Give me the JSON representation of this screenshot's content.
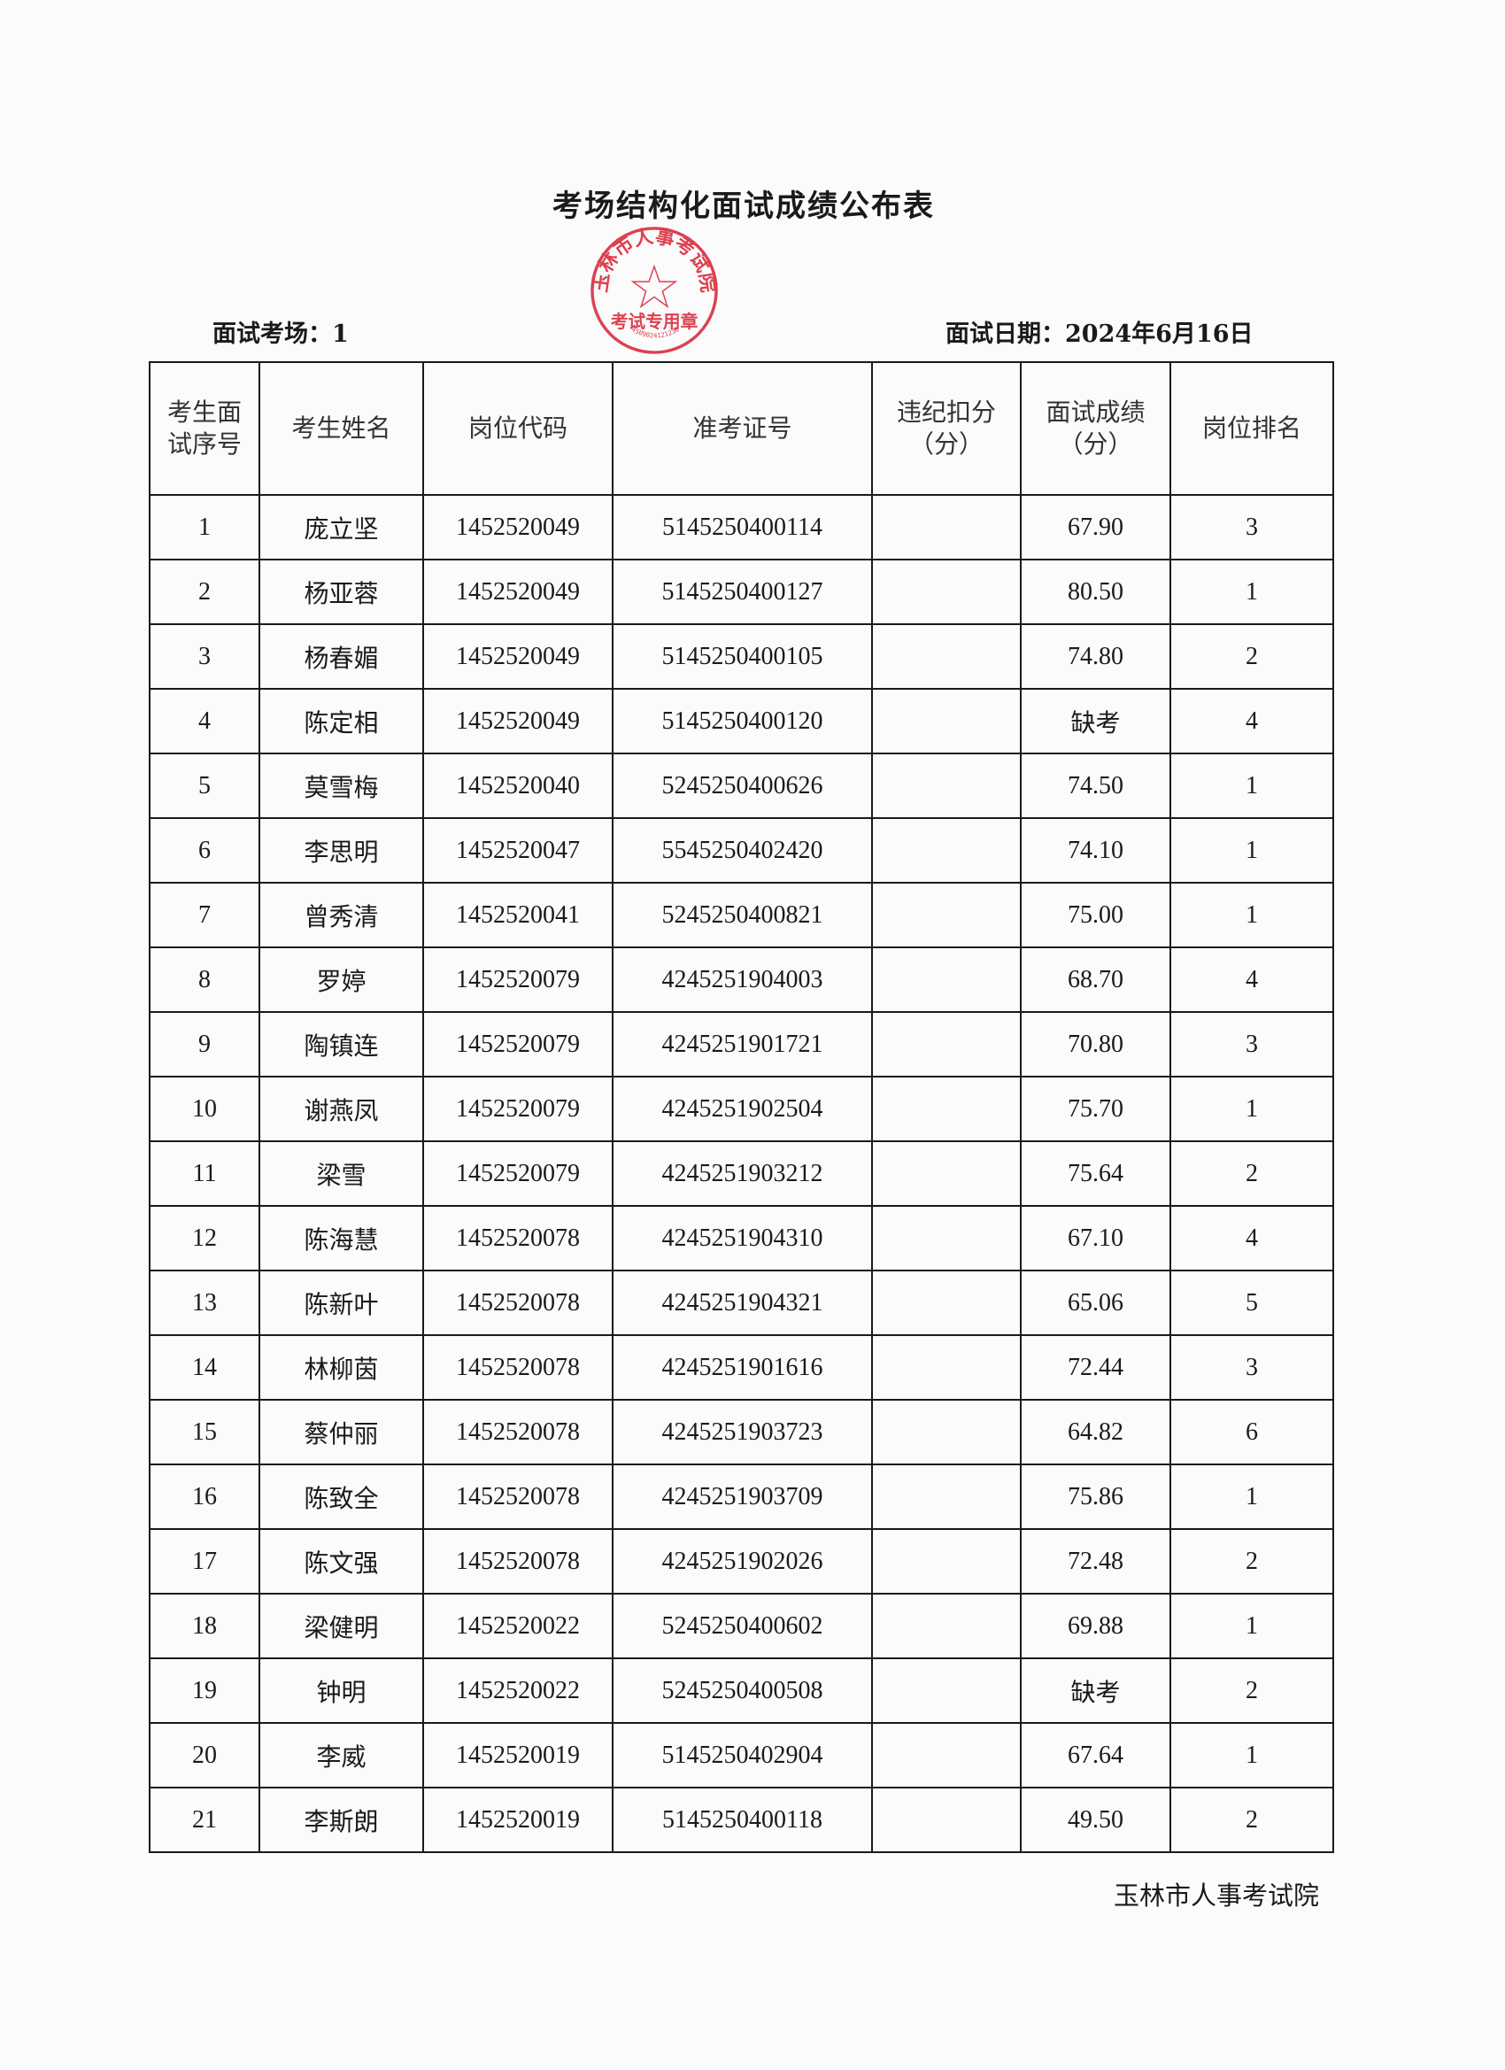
{
  "title": "考场结构化面试成绩公布表",
  "exam_room_label": "面试考场：1",
  "exam_date_label": "面试日期：2024年6月16日",
  "headers": [
    "考生面\n试序号",
    "考生姓名",
    "岗位代码",
    "准考证号",
    "违纪扣分\n（分）",
    "面试成绩\n（分）",
    "岗位排名"
  ],
  "rows": [
    [
      "1",
      "庞立坚",
      "1452520049",
      "5145250400114",
      "",
      "67.90",
      "3"
    ],
    [
      "2",
      "杨亚蓉",
      "1452520049",
      "5145250400127",
      "",
      "80.50",
      "1"
    ],
    [
      "3",
      "杨春媚",
      "1452520049",
      "5145250400105",
      "",
      "74.80",
      "2"
    ],
    [
      "4",
      "陈定相",
      "1452520049",
      "5145250400120",
      "",
      "缺考",
      "4"
    ],
    [
      "5",
      "莫雪梅",
      "1452520040",
      "5245250400626",
      "",
      "74.50",
      "1"
    ],
    [
      "6",
      "李思明",
      "1452520047",
      "5545250402420",
      "",
      "74.10",
      "1"
    ],
    [
      "7",
      "曾秀清",
      "1452520041",
      "5245250400821",
      "",
      "75.00",
      "1"
    ],
    [
      "8",
      "罗婷",
      "1452520079",
      "4245251904003",
      "",
      "68.70",
      "4"
    ],
    [
      "9",
      "陶镇连",
      "1452520079",
      "4245251901721",
      "",
      "70.80",
      "3"
    ],
    [
      "10",
      "谢燕凤",
      "1452520079",
      "4245251902504",
      "",
      "75.70",
      "1"
    ],
    [
      "11",
      "梁雪",
      "1452520079",
      "4245251903212",
      "",
      "75.64",
      "2"
    ],
    [
      "12",
      "陈海慧",
      "1452520078",
      "4245251904310",
      "",
      "67.10",
      "4"
    ],
    [
      "13",
      "陈新叶",
      "1452520078",
      "4245251904321",
      "",
      "65.06",
      "5"
    ],
    [
      "14",
      "林柳茵",
      "1452520078",
      "4245251901616",
      "",
      "72.44",
      "3"
    ],
    [
      "15",
      "蔡仲丽",
      "1452520078",
      "4245251903723",
      "",
      "64.82",
      "6"
    ],
    [
      "16",
      "陈致全",
      "1452520078",
      "4245251903709",
      "",
      "75.86",
      "1"
    ],
    [
      "17",
      "陈文强",
      "1452520078",
      "4245251902026",
      "",
      "72.48",
      "2"
    ],
    [
      "18",
      "梁健明",
      "1452520022",
      "5245250400602",
      "",
      "69.88",
      "1"
    ],
    [
      "19",
      "钟明",
      "1452520022",
      "5245250400508",
      "",
      "缺考",
      "2"
    ],
    [
      "20",
      "李威",
      "1452520019",
      "5145250402904",
      "",
      "67.64",
      "1"
    ],
    [
      "21",
      "李斯朗",
      "1452520019",
      "5145250400118",
      "",
      "49.50",
      "2"
    ]
  ],
  "footer": "玉林市人事考试院",
  "seal": {
    "outer_text": "玉林市人事考试院",
    "inner_text": "考试专用章",
    "number": "4509024121236",
    "color": "#d8283a"
  }
}
